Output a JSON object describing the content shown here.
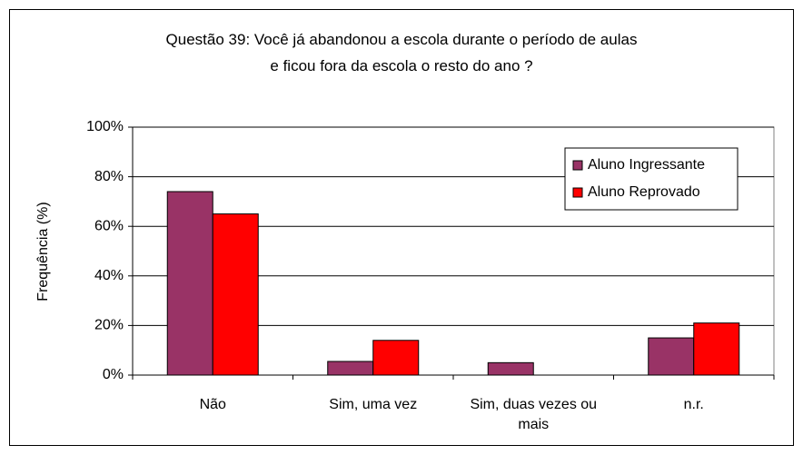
{
  "chart_data": {
    "type": "bar",
    "title": [
      "Questão 39: Você já abandonou a escola durante o período de aulas",
      "e ficou fora da escola o resto do ano ?"
    ],
    "y_label": "Frequência (%)",
    "categories": [
      "Não",
      "Sim, uma vez",
      "Sim, duas vezes ou mais",
      "n.r."
    ],
    "series": [
      {
        "name": "Aluno Ingressante",
        "color": "#993366",
        "values": [
          74,
          5.5,
          5,
          15
        ]
      },
      {
        "name": "Aluno Reprovado",
        "color": "#ff0000",
        "values": [
          65,
          14,
          0,
          21
        ]
      }
    ],
    "ylim": [
      0,
      100
    ],
    "yticks": [
      {
        "value": 0,
        "label": "0%"
      },
      {
        "value": 20,
        "label": "20%"
      },
      {
        "value": 40,
        "label": "40%"
      },
      {
        "value": 60,
        "label": "60%"
      },
      {
        "value": 80,
        "label": "80%"
      },
      {
        "value": 100,
        "label": "100%"
      }
    ],
    "grid": true,
    "legend": "upper right"
  }
}
